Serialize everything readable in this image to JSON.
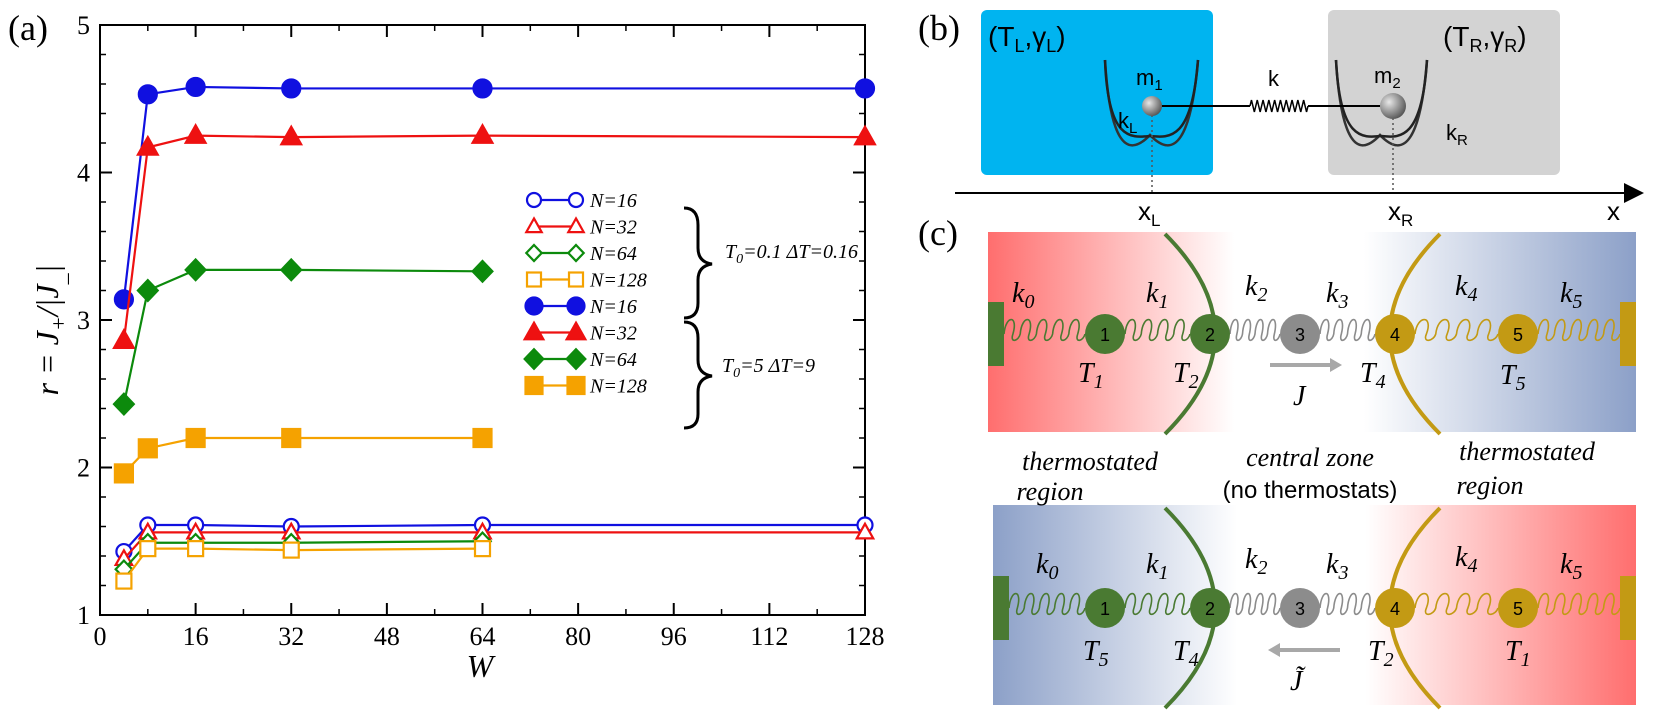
{
  "panels": {
    "a": "(a)",
    "b": "(b)",
    "c": "(c)"
  },
  "chart_data": {
    "type": "line",
    "xlabel": "W",
    "ylabel_main": "r = J",
    "ylabel_plus": "+",
    "ylabel_div": "/|J",
    "ylabel_minus": "_",
    "ylabel_end": "|",
    "xlim": [
      0,
      128
    ],
    "ylim": [
      1,
      5
    ],
    "xticks": [
      0,
      16,
      32,
      48,
      64,
      80,
      96,
      112,
      128
    ],
    "yticks": [
      1,
      2,
      3,
      4,
      5
    ],
    "legend": {
      "group1_label": "T",
      "group1_sub": "0",
      "group1_rest": "=0.1  ΔT=0.16",
      "group2_label": "T",
      "group2_sub": "0",
      "group2_rest": "=5   ΔT=9"
    },
    "series": [
      {
        "name": "N=16",
        "group": 1,
        "color": "#1010e0",
        "marker": "circle",
        "filled": false,
        "x": [
          4,
          8,
          16,
          32,
          64,
          128
        ],
        "y": [
          1.43,
          1.61,
          1.61,
          1.6,
          1.61,
          1.61
        ]
      },
      {
        "name": "N=32",
        "group": 1,
        "color": "#ee1111",
        "marker": "triangle",
        "filled": false,
        "x": [
          4,
          8,
          16,
          32,
          64,
          128
        ],
        "y": [
          1.38,
          1.56,
          1.56,
          1.56,
          1.56,
          1.56
        ]
      },
      {
        "name": "N=64",
        "group": 1,
        "color": "#0c8a0c",
        "marker": "diamond",
        "filled": false,
        "x": [
          4,
          8,
          16,
          32,
          64
        ],
        "y": [
          1.31,
          1.49,
          1.49,
          1.49,
          1.5
        ]
      },
      {
        "name": "N=128",
        "group": 1,
        "color": "#f5a200",
        "marker": "square",
        "filled": false,
        "x": [
          4,
          8,
          16,
          32,
          64
        ],
        "y": [
          1.23,
          1.45,
          1.45,
          1.44,
          1.45
        ]
      },
      {
        "name": "N=16",
        "group": 2,
        "color": "#1010e0",
        "marker": "circle",
        "filled": true,
        "x": [
          4,
          8,
          16,
          32,
          64,
          128
        ],
        "y": [
          3.14,
          4.53,
          4.58,
          4.57,
          4.57,
          4.57
        ]
      },
      {
        "name": "N=32",
        "group": 2,
        "color": "#ee1111",
        "marker": "triangle",
        "filled": true,
        "x": [
          4,
          8,
          16,
          32,
          64,
          128
        ],
        "y": [
          2.86,
          4.17,
          4.25,
          4.24,
          4.25,
          4.24
        ]
      },
      {
        "name": "N=64",
        "group": 2,
        "color": "#0c8a0c",
        "marker": "diamond",
        "filled": true,
        "x": [
          4,
          8,
          16,
          32,
          64
        ],
        "y": [
          2.43,
          3.2,
          3.34,
          3.34,
          3.33
        ]
      },
      {
        "name": "N=128",
        "group": 2,
        "color": "#f5a200",
        "marker": "square",
        "filled": true,
        "x": [
          4,
          8,
          16,
          32,
          64
        ],
        "y": [
          1.96,
          2.13,
          2.2,
          2.2,
          2.2
        ]
      }
    ]
  },
  "panel_b": {
    "left_label": "(T",
    "left_label_sub": "L",
    "left_label_mid": ",γ",
    "left_label_sub2": "L",
    "left_label_end": ")",
    "right_label": "(T",
    "right_label_sub": "R",
    "right_label_mid": ",γ",
    "right_label_sub2": "R",
    "right_label_end": ")",
    "m1": "m",
    "m1_sub": "1",
    "m2": "m",
    "m2_sub": "2",
    "k": "k",
    "kL": "k",
    "kL_sub": "L",
    "kR": "k",
    "kR_sub": "R",
    "xL": "x",
    "xL_sub": "L",
    "xR": "x",
    "xR_sub": "R",
    "x_axis": "x",
    "left_color": "#00b4f0",
    "right_color": "#d3d3d3"
  },
  "panel_c": {
    "springs": [
      "k",
      "k",
      "k",
      "k",
      "k",
      "k"
    ],
    "spring_subs": [
      "0",
      "1",
      "2",
      "3",
      "4",
      "5"
    ],
    "particles": [
      "1",
      "2",
      "3",
      "4",
      "5"
    ],
    "top_temps": [
      "T",
      "T",
      "T",
      "T"
    ],
    "top_temp_subs": [
      "1",
      "2",
      "4",
      "5"
    ],
    "bottom_temps": [
      "T",
      "T",
      "T",
      "T"
    ],
    "bottom_temp_subs": [
      "5",
      "4",
      "2",
      "1"
    ],
    "top_flux": "J",
    "bottom_flux": "J̃",
    "region_left": "thermostated",
    "region_left2": "region",
    "central": "central zone",
    "central2": "(no thermostats)",
    "region_right": "thermostated",
    "region_right2": "region",
    "green": "#4a7a32",
    "gold": "#c39a14",
    "gray": "#8c8c8c"
  }
}
